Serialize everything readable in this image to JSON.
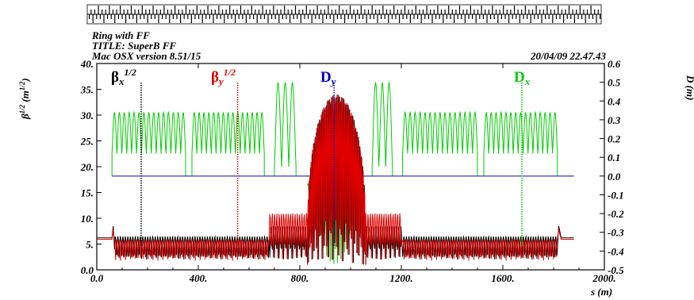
{
  "chart_data": {
    "type": "line",
    "header": {
      "line1": "Ring with FF",
      "line2": "TITLE: SuperB FF",
      "line3": "Mac OSX version 8.51/15",
      "timestamp": "20/04/09  22.47.43"
    },
    "xlabel": "s (m)",
    "ylabel_left": "β^1/2 (m^1/2)",
    "ylabel_right": "D (m)",
    "xlim": [
      0,
      2000
    ],
    "ylim_left": [
      0,
      40
    ],
    "ylim_right": [
      -0.5,
      0.6
    ],
    "x_ticks": [
      "0.0",
      "400.",
      "800.",
      "1200.",
      "1600.",
      "2000."
    ],
    "y_ticks_left": [
      "0.0",
      "5.",
      "10.",
      "15.",
      "20.",
      "25.",
      "30.",
      "35.",
      "40."
    ],
    "y_ticks_right": [
      "-0.5",
      "-0.4",
      "-0.3",
      "-0.2",
      "-0.1",
      "0.0",
      "0.1",
      "0.2",
      "0.3",
      "0.4",
      "0.5",
      "0.6"
    ],
    "grid": false,
    "legend": [
      {
        "name": "βx",
        "sup": "1/2",
        "color": "#000000",
        "marker_s": 175
      },
      {
        "name": "βy",
        "sup": "1/2",
        "color": "#e00000",
        "marker_s": 555
      },
      {
        "name": "Dy",
        "sup": "",
        "color": "#0000cc",
        "marker_s": 935
      },
      {
        "name": "Dx",
        "sup": "",
        "color": "#00cc00",
        "marker_s": 1675
      }
    ],
    "series": [
      {
        "name": "Dx",
        "axis": "right",
        "color": "#00cc00",
        "segments": [
          {
            "start": 60,
            "end": 350,
            "base": 0.0,
            "min": 0.12,
            "max": 0.34,
            "cells": 15
          },
          {
            "start": 375,
            "end": 660,
            "base": 0.0,
            "min": 0.12,
            "max": 0.34,
            "cells": 15
          },
          {
            "start": 700,
            "end": 785,
            "base": 0.0,
            "min": 0.05,
            "max": 0.5,
            "cells": 3
          },
          {
            "start": 1085,
            "end": 1165,
            "base": 0.0,
            "min": 0.05,
            "max": 0.5,
            "cells": 3
          },
          {
            "start": 1205,
            "end": 1500,
            "base": 0.0,
            "min": 0.12,
            "max": 0.34,
            "cells": 15
          },
          {
            "start": 1525,
            "end": 1815,
            "base": 0.0,
            "min": 0.12,
            "max": 0.34,
            "cells": 15
          }
        ],
        "ff_region": {
          "start": 830,
          "end": 1050,
          "min": -0.43,
          "max": 0.33
        }
      },
      {
        "name": "Dy",
        "axis": "right",
        "color": "#0000cc",
        "value": 0.0,
        "range": [
          60,
          1880
        ]
      },
      {
        "name": "βx",
        "axis": "left",
        "color": "#000000",
        "flat": 6.2,
        "ring_min": 2.0,
        "ring_max": 6.5,
        "cell_count": 60,
        "ff_peaks": [
          8.5,
          33.0
        ]
      },
      {
        "name": "βy",
        "axis": "left",
        "color": "#e00000",
        "flat": 5.9,
        "ring_min": 1.8,
        "ring_max": 5.8,
        "cell_count": 60,
        "ff_peaks": [
          11.0,
          33.0
        ]
      }
    ]
  }
}
